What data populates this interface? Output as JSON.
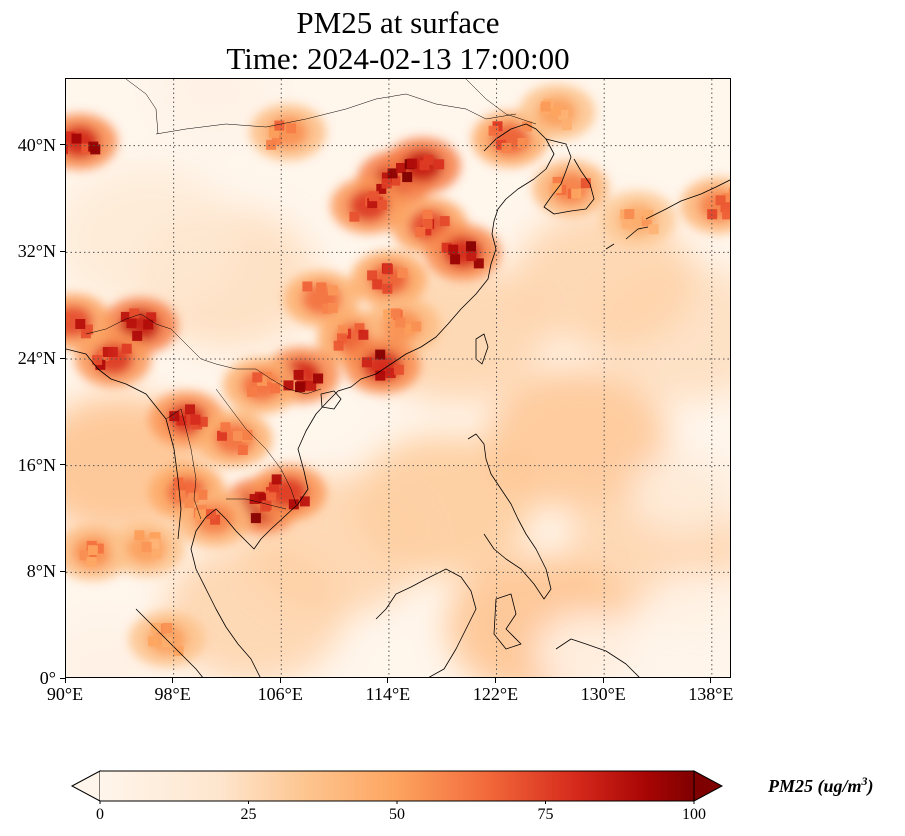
{
  "title": {
    "line1": "PM25 at surface",
    "line2": "Time: 2024-02-13 17:00:00"
  },
  "axes": {
    "lon_labels": [
      "90°E",
      "98°E",
      "106°E",
      "114°E",
      "122°E",
      "130°E",
      "138°E"
    ],
    "lat_labels": [
      "0°",
      "8°N",
      "16°N",
      "24°N",
      "32°N",
      "40°N"
    ],
    "lon_values": [
      90,
      98,
      106,
      114,
      122,
      130,
      138
    ],
    "lat_values": [
      0,
      8,
      16,
      24,
      32,
      40
    ],
    "lon_range": [
      90,
      139.5
    ],
    "lat_range": [
      0,
      45
    ]
  },
  "colorbar": {
    "ticks": [
      "0",
      "25",
      "50",
      "75",
      "100"
    ],
    "tick_values": [
      0,
      25,
      50,
      75,
      100
    ],
    "range": [
      0,
      100
    ],
    "extend": "both",
    "label_main": "PM25 (ug/m",
    "label_sup": "3",
    "label_end": ")",
    "colors": [
      "#fff5eb",
      "#fdd9b4",
      "#fdab67",
      "#f16913",
      "#c92d04",
      "#7f0000"
    ]
  },
  "gridlines": "dotted",
  "colormap": "OrRd",
  "hotspots": [
    {
      "lon": 114.5,
      "lat": 37.5,
      "value": 100
    },
    {
      "lon": 116.5,
      "lat": 38.5,
      "value": 100
    },
    {
      "lon": 112.5,
      "lat": 35.5,
      "value": 90
    },
    {
      "lon": 117.0,
      "lat": 34.0,
      "value": 85
    },
    {
      "lon": 119.5,
      "lat": 32.0,
      "value": 95
    },
    {
      "lon": 114.0,
      "lat": 30.0,
      "value": 80
    },
    {
      "lon": 109.0,
      "lat": 28.5,
      "value": 75
    },
    {
      "lon": 111.5,
      "lat": 25.5,
      "value": 80
    },
    {
      "lon": 115.0,
      "lat": 26.5,
      "value": 65
    },
    {
      "lon": 107.5,
      "lat": 22.8,
      "value": 95
    },
    {
      "lon": 113.5,
      "lat": 23.5,
      "value": 95
    },
    {
      "lon": 104.5,
      "lat": 22.0,
      "value": 75
    },
    {
      "lon": 95.5,
      "lat": 26.5,
      "value": 100
    },
    {
      "lon": 93.5,
      "lat": 24.0,
      "value": 90
    },
    {
      "lon": 90.5,
      "lat": 26.8,
      "value": 85
    },
    {
      "lon": 99.0,
      "lat": 19.5,
      "value": 90
    },
    {
      "lon": 102.5,
      "lat": 18.0,
      "value": 75
    },
    {
      "lon": 104.5,
      "lat": 13.0,
      "value": 100
    },
    {
      "lon": 106.5,
      "lat": 14.0,
      "value": 90
    },
    {
      "lon": 99.0,
      "lat": 14.0,
      "value": 80
    },
    {
      "lon": 101.0,
      "lat": 12.0,
      "value": 70
    },
    {
      "lon": 92.0,
      "lat": 9.5,
      "value": 65
    },
    {
      "lon": 96.0,
      "lat": 9.8,
      "value": 60
    },
    {
      "lon": 91.0,
      "lat": 40.3,
      "value": 95
    },
    {
      "lon": 106.5,
      "lat": 41.0,
      "value": 65
    },
    {
      "lon": 123.0,
      "lat": 40.5,
      "value": 80
    },
    {
      "lon": 127.5,
      "lat": 36.8,
      "value": 70
    },
    {
      "lon": 132.5,
      "lat": 34.5,
      "value": 55
    },
    {
      "lon": 138.5,
      "lat": 35.5,
      "value": 70
    },
    {
      "lon": 126.5,
      "lat": 42.5,
      "value": 60
    },
    {
      "lon": 97.5,
      "lat": 3.0,
      "value": 60
    }
  ],
  "ambient": [
    {
      "lon": 118,
      "lat": 13,
      "value": 35
    },
    {
      "lon": 128,
      "lat": 18,
      "value": 38
    },
    {
      "lon": 134,
      "lat": 10,
      "value": 30
    },
    {
      "lon": 125,
      "lat": 4,
      "value": 40
    },
    {
      "lon": 110,
      "lat": 10,
      "value": 30
    },
    {
      "lon": 102,
      "lat": 30,
      "value": 25
    },
    {
      "lon": 96,
      "lat": 33,
      "value": 18
    },
    {
      "lon": 136,
      "lat": 26,
      "value": 25
    },
    {
      "lon": 130,
      "lat": 30,
      "value": 30
    },
    {
      "lon": 104,
      "lat": 5,
      "value": 30
    },
    {
      "lon": 94,
      "lat": 16,
      "value": 40
    },
    {
      "lon": 119,
      "lat": 26,
      "value": 30
    }
  ],
  "clean_patches": [
    {
      "lon": 137,
      "lat": 5,
      "value": 3
    },
    {
      "lon": 129,
      "lat": 2,
      "value": 5
    },
    {
      "lon": 136,
      "lat": 14,
      "value": 12
    },
    {
      "lon": 101,
      "lat": 44,
      "value": 5
    },
    {
      "lon": 93,
      "lat": 1,
      "value": 5
    }
  ]
}
